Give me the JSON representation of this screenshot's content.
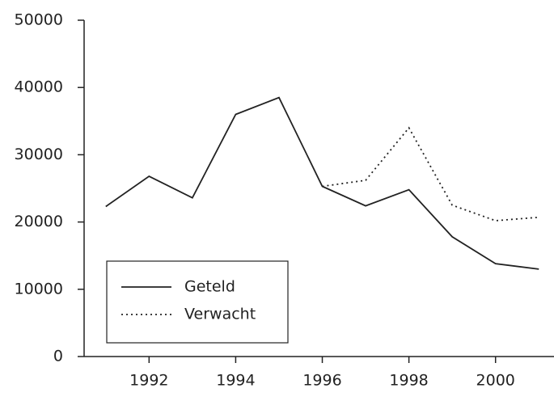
{
  "chart_data": {
    "type": "line",
    "x": [
      1991,
      1992,
      1993,
      1994,
      1995,
      1996,
      1997,
      1998,
      1999,
      2000,
      2001
    ],
    "series": [
      {
        "name": "Geteld",
        "color": "#222222",
        "dash": "solid",
        "values": [
          22300,
          26800,
          23600,
          36000,
          38500,
          25300,
          22400,
          24800,
          17800,
          13800,
          13000
        ]
      },
      {
        "name": "Verwacht",
        "color": "#222222",
        "dash": "dotted",
        "values": [
          null,
          null,
          null,
          null,
          null,
          25300,
          26200,
          34000,
          22500,
          20200,
          20700
        ]
      }
    ],
    "xlim": [
      1990.5,
      2001.35
    ],
    "xticks": [
      1992,
      1994,
      1996,
      1998,
      2000
    ],
    "ylim": [
      0,
      50000
    ],
    "yticks": [
      0,
      10000,
      20000,
      30000,
      40000,
      50000
    ],
    "grid": false,
    "legend": "lower left"
  }
}
